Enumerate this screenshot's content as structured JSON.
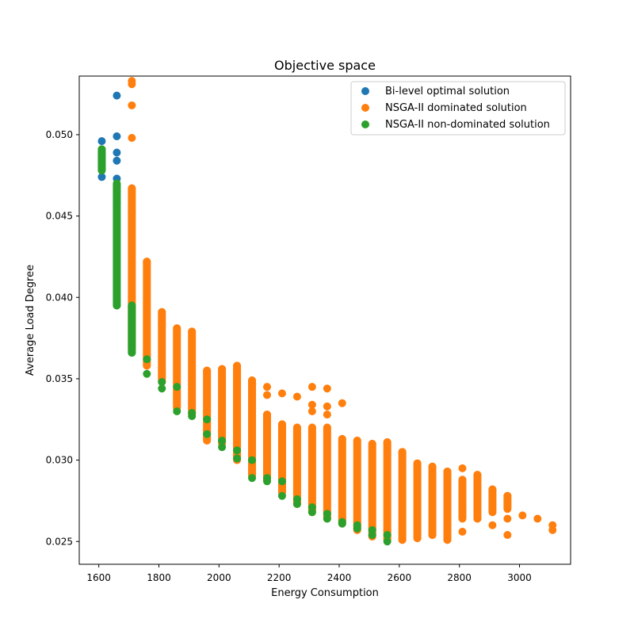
{
  "chart_data": {
    "type": "scatter",
    "title": "Objective space",
    "xlabel": "Energy Consumption",
    "ylabel": "Average Load Degree",
    "xlim": [
      1535,
      3170
    ],
    "ylim": [
      0.0236,
      0.0536
    ],
    "xticks": [
      1600,
      1800,
      2000,
      2200,
      2400,
      2600,
      2800,
      3000
    ],
    "yticks": [
      0.025,
      0.03,
      0.035,
      0.04,
      0.045,
      0.05
    ],
    "ytick_labels": [
      "0.025",
      "0.030",
      "0.035",
      "0.040",
      "0.045",
      "0.050"
    ],
    "grid": false,
    "legend_position": "top-right",
    "series": [
      {
        "name": "Bi-level optimal solution",
        "color": "#1f77b4",
        "points": [
          [
            1610,
            0.0496
          ],
          [
            1610,
            0.0487
          ],
          [
            1610,
            0.0481
          ],
          [
            1610,
            0.0474
          ],
          [
            1660,
            0.0524
          ],
          [
            1660,
            0.0499
          ],
          [
            1660,
            0.0489
          ],
          [
            1660,
            0.0484
          ],
          [
            1660,
            0.0473
          ],
          [
            1660,
            0.0465
          ],
          [
            1660,
            0.0458
          ],
          [
            1710,
            0.0452
          ]
        ]
      },
      {
        "name": "NSGA-II dominated solution",
        "color": "#ff7f0e",
        "points": [
          [
            1710,
            0.0533
          ],
          [
            1710,
            0.0531
          ],
          [
            1710,
            0.0518
          ],
          [
            1710,
            0.0498
          ],
          [
            1710,
            0.0467
          ],
          [
            1710,
            0.04
          ],
          [
            1710,
            0.037
          ],
          [
            1760,
            0.0422
          ],
          [
            1760,
            0.0365
          ],
          [
            1810,
            0.0391
          ],
          [
            1810,
            0.0384
          ],
          [
            1810,
            0.0355
          ],
          [
            1860,
            0.0381
          ],
          [
            1860,
            0.034
          ],
          [
            1910,
            0.0379
          ],
          [
            1910,
            0.0335
          ],
          [
            1960,
            0.0355
          ],
          [
            1960,
            0.033
          ],
          [
            2010,
            0.0356
          ],
          [
            2010,
            0.0318
          ],
          [
            2060,
            0.0358
          ],
          [
            2060,
            0.031
          ],
          [
            2110,
            0.0349
          ],
          [
            2110,
            0.03
          ],
          [
            2160,
            0.0345
          ],
          [
            2160,
            0.034
          ],
          [
            2160,
            0.0328
          ],
          [
            2160,
            0.029
          ],
          [
            2210,
            0.0341
          ],
          [
            2210,
            0.0322
          ],
          [
            2210,
            0.0285
          ],
          [
            2260,
            0.0339
          ],
          [
            2260,
            0.032
          ],
          [
            2260,
            0.028
          ],
          [
            2310,
            0.0345
          ],
          [
            2310,
            0.0334
          ],
          [
            2310,
            0.033
          ],
          [
            2310,
            0.032
          ],
          [
            2310,
            0.0272
          ],
          [
            2360,
            0.0344
          ],
          [
            2360,
            0.0333
          ],
          [
            2360,
            0.0328
          ],
          [
            2360,
            0.032
          ],
          [
            2360,
            0.0268
          ],
          [
            2410,
            0.0335
          ],
          [
            2410,
            0.0313
          ],
          [
            2410,
            0.0265
          ],
          [
            2460,
            0.0312
          ],
          [
            2460,
            0.0262
          ],
          [
            2510,
            0.031
          ],
          [
            2510,
            0.0258
          ],
          [
            2560,
            0.0311
          ],
          [
            2560,
            0.0257
          ],
          [
            2610,
            0.0305
          ],
          [
            2610,
            0.0251
          ],
          [
            2660,
            0.0298
          ],
          [
            2660,
            0.0252
          ],
          [
            2710,
            0.0296
          ],
          [
            2710,
            0.0254
          ],
          [
            2760,
            0.0293
          ],
          [
            2760,
            0.0251
          ],
          [
            2810,
            0.0295
          ],
          [
            2810,
            0.0268
          ],
          [
            2810,
            0.0256
          ],
          [
            2860,
            0.0291
          ],
          [
            2860,
            0.0264
          ],
          [
            2910,
            0.0282
          ],
          [
            2910,
            0.026
          ],
          [
            2960,
            0.0278
          ],
          [
            2960,
            0.0264
          ],
          [
            2960,
            0.0254
          ],
          [
            3010,
            0.0266
          ],
          [
            3060,
            0.0264
          ],
          [
            3110,
            0.026
          ],
          [
            3110,
            0.0257
          ]
        ],
        "vertical_ranges": [
          [
            1710,
            0.0368,
            0.0467
          ],
          [
            1760,
            0.0358,
            0.0422
          ],
          [
            1810,
            0.0348,
            0.0391
          ],
          [
            1860,
            0.0332,
            0.0381
          ],
          [
            1910,
            0.0328,
            0.0379
          ],
          [
            1960,
            0.0312,
            0.0355
          ],
          [
            2010,
            0.031,
            0.0356
          ],
          [
            2060,
            0.03,
            0.0358
          ],
          [
            2110,
            0.029,
            0.0349
          ],
          [
            2160,
            0.0288,
            0.0328
          ],
          [
            2210,
            0.028,
            0.0322
          ],
          [
            2260,
            0.0273,
            0.032
          ],
          [
            2310,
            0.0268,
            0.032
          ],
          [
            2360,
            0.0264,
            0.032
          ],
          [
            2410,
            0.0261,
            0.0313
          ],
          [
            2460,
            0.0257,
            0.0312
          ],
          [
            2510,
            0.0253,
            0.031
          ],
          [
            2560,
            0.0251,
            0.0311
          ],
          [
            2610,
            0.0251,
            0.0305
          ],
          [
            2660,
            0.0252,
            0.0298
          ],
          [
            2710,
            0.0254,
            0.0296
          ],
          [
            2760,
            0.0251,
            0.0293
          ],
          [
            2810,
            0.0264,
            0.0288
          ],
          [
            2860,
            0.0264,
            0.0291
          ],
          [
            2910,
            0.0268,
            0.0282
          ],
          [
            2960,
            0.027,
            0.0278
          ]
        ]
      },
      {
        "name": "NSGA-II non-dominated solution",
        "color": "#2ca02c",
        "points": [
          [
            1610,
            0.0491
          ],
          [
            1610,
            0.0488
          ],
          [
            1610,
            0.0485
          ],
          [
            1610,
            0.0482
          ],
          [
            1610,
            0.0479
          ],
          [
            1660,
            0.0399
          ],
          [
            1660,
            0.0395
          ],
          [
            1710,
            0.0395
          ],
          [
            1710,
            0.0366
          ],
          [
            1760,
            0.0362
          ],
          [
            1760,
            0.0353
          ],
          [
            1810,
            0.0348
          ],
          [
            1810,
            0.0344
          ],
          [
            1860,
            0.0345
          ],
          [
            1860,
            0.033
          ],
          [
            1910,
            0.0329
          ],
          [
            1910,
            0.0327
          ],
          [
            1960,
            0.0325
          ],
          [
            1960,
            0.0316
          ],
          [
            2010,
            0.0312
          ],
          [
            2010,
            0.0308
          ],
          [
            2060,
            0.0306
          ],
          [
            2060,
            0.0301
          ],
          [
            2110,
            0.03
          ],
          [
            2110,
            0.0289
          ],
          [
            2160,
            0.0289
          ],
          [
            2160,
            0.0287
          ],
          [
            2210,
            0.0287
          ],
          [
            2210,
            0.0278
          ],
          [
            2260,
            0.0276
          ],
          [
            2260,
            0.0273
          ],
          [
            2310,
            0.0271
          ],
          [
            2310,
            0.0268
          ],
          [
            2360,
            0.0267
          ],
          [
            2360,
            0.0264
          ],
          [
            2410,
            0.0262
          ],
          [
            2410,
            0.0261
          ],
          [
            2460,
            0.026
          ],
          [
            2460,
            0.0258
          ],
          [
            2510,
            0.0257
          ],
          [
            2510,
            0.0254
          ],
          [
            2560,
            0.0254
          ],
          [
            2560,
            0.025
          ]
        ],
        "vertical_ranges": [
          [
            1610,
            0.0478,
            0.0491
          ],
          [
            1660,
            0.0395,
            0.047
          ],
          [
            1710,
            0.0366,
            0.0395
          ]
        ]
      }
    ]
  }
}
